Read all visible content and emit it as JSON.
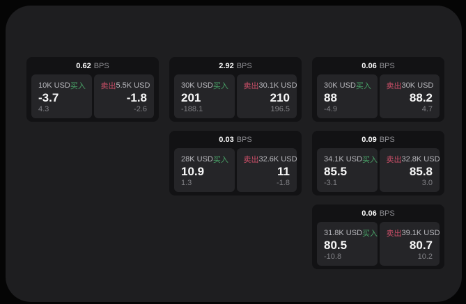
{
  "labels": {
    "bps_unit": "BPS",
    "buy": "买入",
    "sell": "卖出"
  },
  "colors": {
    "buy_green": "#49a368",
    "sell_red": "#cc4f68",
    "app_bg": "#1e1e20",
    "card_bg": "#121214",
    "panel_bg": "#252528"
  },
  "cards": [
    {
      "bps": "0.62",
      "buy": {
        "amount": "10K USD",
        "value": "-3.7",
        "sub": "4.3"
      },
      "sell": {
        "amount": "5.5K USD",
        "value": "-1.8",
        "sub": "-2.6"
      }
    },
    {
      "bps": "2.92",
      "buy": {
        "amount": "30K USD",
        "value": "201",
        "sub": "-188.1"
      },
      "sell": {
        "amount": "30.1K USD",
        "value": "210",
        "sub": "196.5"
      }
    },
    {
      "bps": "0.06",
      "buy": {
        "amount": "30K USD",
        "value": "88",
        "sub": "-4.9"
      },
      "sell": {
        "amount": "30K USD",
        "value": "88.2",
        "sub": "4.7"
      }
    },
    {
      "bps": "0.03",
      "buy": {
        "amount": "28K USD",
        "value": "10.9",
        "sub": "1.3"
      },
      "sell": {
        "amount": "32.6K USD",
        "value": "11",
        "sub": "-1.8"
      }
    },
    {
      "bps": "0.09",
      "buy": {
        "amount": "34.1K USD",
        "value": "85.5",
        "sub": "-3.1"
      },
      "sell": {
        "amount": "32.8K USD",
        "value": "85.8",
        "sub": "3.0"
      }
    },
    {
      "bps": "0.06",
      "buy": {
        "amount": "31.8K USD",
        "value": "80.5",
        "sub": "-10.8"
      },
      "sell": {
        "amount": "39.1K USD",
        "value": "80.7",
        "sub": "10.2"
      }
    }
  ]
}
